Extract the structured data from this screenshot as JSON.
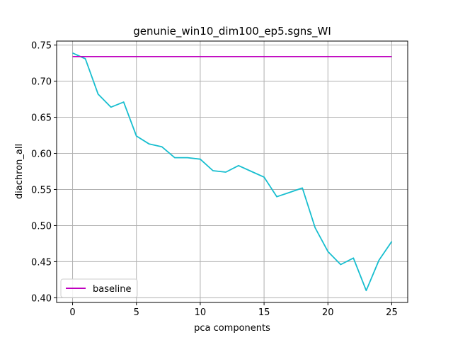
{
  "chart_data": {
    "type": "line",
    "title": "genunie_win10_dim100_ep5.sgns_WI",
    "xlabel": "pca components",
    "ylabel": "diachron_all",
    "xlim": [
      -1.25,
      26.25
    ],
    "ylim": [
      0.3935,
      0.7555
    ],
    "xticks": [
      0,
      5,
      10,
      15,
      20,
      25
    ],
    "xtick_labels": [
      "0",
      "5",
      "10",
      "15",
      "20",
      "25"
    ],
    "yticks": [
      0.4,
      0.45,
      0.5,
      0.55,
      0.6,
      0.65,
      0.7,
      0.75
    ],
    "ytick_labels": [
      "0.40",
      "0.45",
      "0.50",
      "0.55",
      "0.60",
      "0.65",
      "0.70",
      "0.75"
    ],
    "grid": true,
    "legend_position": "lower-left",
    "series": [
      {
        "name": "",
        "color": "#17becf",
        "x": [
          0,
          1,
          2,
          3,
          4,
          5,
          6,
          7,
          8,
          9,
          10,
          11,
          12,
          13,
          14,
          15,
          16,
          17,
          18,
          19,
          20,
          21,
          22,
          23,
          24,
          25
        ],
        "values": [
          0.739,
          0.731,
          0.682,
          0.664,
          0.671,
          0.624,
          0.613,
          0.609,
          0.594,
          0.594,
          0.592,
          0.576,
          0.574,
          0.583,
          0.575,
          0.567,
          0.54,
          0.546,
          0.552,
          0.497,
          0.464,
          0.446,
          0.455,
          0.41,
          0.452,
          0.478
        ]
      },
      {
        "name": "baseline",
        "color": "#bf00bf",
        "x": [
          0,
          25
        ],
        "values": [
          0.734,
          0.734
        ]
      }
    ]
  }
}
